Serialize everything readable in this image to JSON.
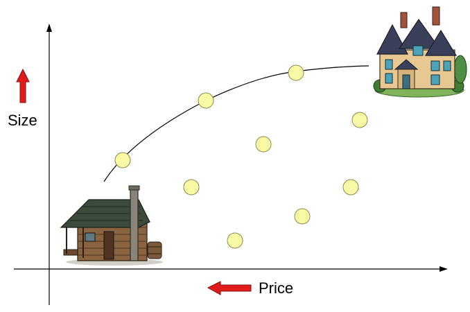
{
  "labels": {
    "y_axis": "Size",
    "x_axis": "Price"
  },
  "colors": {
    "arrow_fill": "#e01b1b",
    "arrow_stroke": "#8a0f0f",
    "point_fill": "#fafaa6",
    "point_stroke": "#8a8a4a",
    "axis": "#000000",
    "curve": "#000000"
  },
  "icons": {
    "bottom_left": "cabin-icon",
    "top_right": "mansion-icon",
    "y_arrow": "arrow-up-icon",
    "x_arrow": "arrow-left-icon"
  },
  "points_count": 9
}
